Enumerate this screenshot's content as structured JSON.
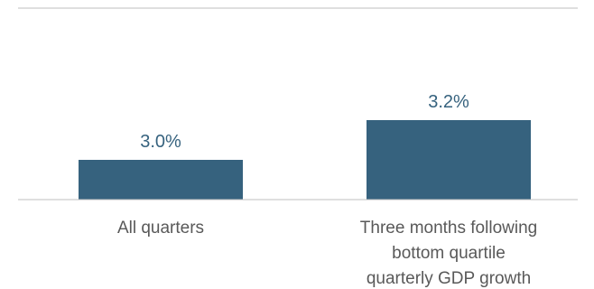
{
  "chart_data": {
    "type": "bar",
    "title": "",
    "xlabel": "",
    "ylabel": "",
    "categories": [
      [
        "All quarters"
      ],
      [
        "Three months following",
        "bottom quartile",
        "quarterly GDP growth"
      ]
    ],
    "values": [
      3.0,
      3.2
    ],
    "data_labels": [
      "3.0%",
      "3.2%"
    ],
    "ylim": [
      2.8,
      3.35
    ],
    "grid": false,
    "legend": "none",
    "colors": {
      "bar": "#36627e",
      "value_label": "#36627e",
      "tick_label": "#595959",
      "axis_line": "#bfbfbf"
    }
  }
}
